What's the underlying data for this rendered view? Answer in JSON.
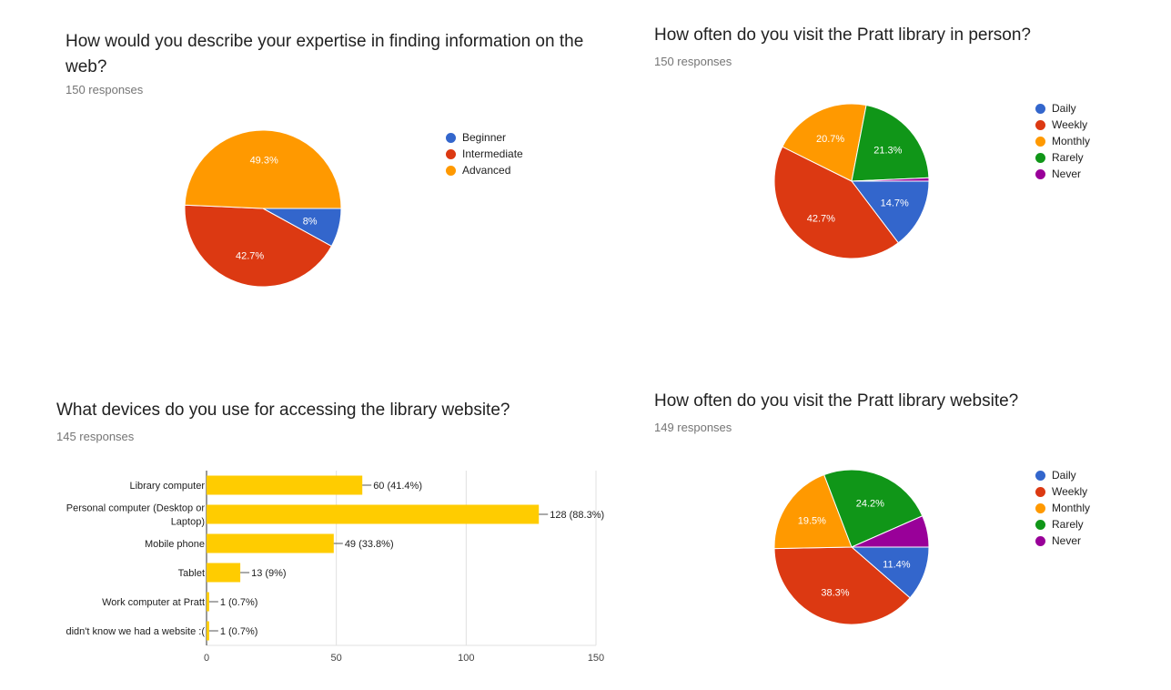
{
  "panels": {
    "expertise": {
      "title": "How would you describe your expertise in finding information on the web?",
      "responses": "150 responses"
    },
    "visit_in_person": {
      "title": "How often do you visit the Pratt library in person?",
      "responses": "150 responses"
    },
    "devices": {
      "title": "What devices do you use for accessing the library website?",
      "responses": "145 responses"
    },
    "visit_website": {
      "title": "How often do you visit the Pratt library website?",
      "responses": "149 responses"
    }
  },
  "chart_data": [
    {
      "id": "expertise",
      "type": "pie",
      "title": "How would you describe your expertise in finding information on the web?",
      "legend_position": "right",
      "labels": [
        "Beginner",
        "Intermediate",
        "Advanced"
      ],
      "values": [
        8,
        42.7,
        49.3
      ],
      "value_labels": [
        "8%",
        "42.7%",
        "49.3%"
      ],
      "colors": [
        "#3366cc",
        "#dc3912",
        "#ff9900"
      ]
    },
    {
      "id": "visit_in_person",
      "type": "pie",
      "title": "How often do you visit the Pratt library in person?",
      "legend_position": "right",
      "labels": [
        "Daily",
        "Weekly",
        "Monthly",
        "Rarely",
        "Never"
      ],
      "values": [
        14.7,
        42.7,
        20.7,
        21.3,
        0.7
      ],
      "value_labels": [
        "14.7%",
        "42.7%",
        "20.7%",
        "21.3%",
        ""
      ],
      "colors": [
        "#3366cc",
        "#dc3912",
        "#ff9900",
        "#109618",
        "#990099"
      ]
    },
    {
      "id": "devices",
      "type": "bar",
      "orientation": "horizontal",
      "title": "What devices do you use for accessing the library website?",
      "categories": [
        "Library computer",
        "Personal computer (Desktop or Laptop)",
        "Mobile phone",
        "Tablet",
        "Work computer at Pratt",
        "didn't know we had a website :("
      ],
      "category_lines": [
        [
          "Library computer"
        ],
        [
          "Personal computer (Desktop or",
          "Laptop)"
        ],
        [
          "Mobile phone"
        ],
        [
          "Tablet"
        ],
        [
          "Work computer at Pratt"
        ],
        [
          "didn't know we had a website :("
        ]
      ],
      "values": [
        60,
        128,
        49,
        13,
        1,
        1
      ],
      "value_labels": [
        "60 (41.4%)",
        "128 (88.3%)",
        "49 (33.8%)",
        "13 (9%)",
        "1 (0.7%)",
        "1 (0.7%)"
      ],
      "xlim": [
        0,
        150
      ],
      "xticks": [
        0,
        50,
        100,
        150
      ],
      "grid": true,
      "color": "#ffcc00"
    },
    {
      "id": "visit_website",
      "type": "pie",
      "title": "How often do you visit the Pratt library website?",
      "legend_position": "right",
      "labels": [
        "Daily",
        "Weekly",
        "Monthly",
        "Rarely",
        "Never"
      ],
      "values": [
        11.4,
        38.3,
        19.5,
        24.2,
        6.6
      ],
      "value_labels": [
        "11.4%",
        "38.3%",
        "19.5%",
        "24.2%",
        ""
      ],
      "colors": [
        "#3366cc",
        "#dc3912",
        "#ff9900",
        "#109618",
        "#990099"
      ]
    }
  ]
}
